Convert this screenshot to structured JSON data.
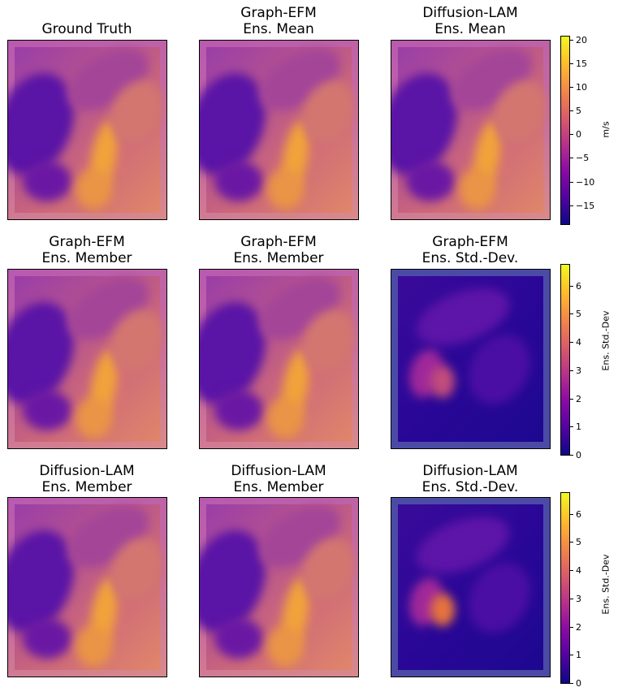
{
  "colors": {
    "plasma_dark": "#0d0887",
    "plasma_purple": "#7e03a8",
    "plasma_magenta": "#cc4778",
    "plasma_orange": "#f89540",
    "plasma_yellow": "#f0f921"
  },
  "panels": [
    {
      "title": "Ground Truth",
      "kind": "wind"
    },
    {
      "title": "Graph-EFM\nEns. Mean",
      "kind": "wind"
    },
    {
      "title": "Diffusion-LAM\nEns. Mean",
      "kind": "wind"
    },
    {
      "title": "Graph-EFM\nEns. Member",
      "kind": "wind"
    },
    {
      "title": "Graph-EFM\nEns. Member",
      "kind": "wind"
    },
    {
      "title": "Graph-EFM\nEns. Std.-Dev.",
      "kind": "std"
    },
    {
      "title": "Diffusion-LAM\nEns. Member",
      "kind": "wind"
    },
    {
      "title": "Diffusion-LAM\nEns. Member",
      "kind": "wind"
    },
    {
      "title": "Diffusion-LAM\nEns. Std.-Dev.",
      "kind": "std"
    }
  ],
  "colorbars": [
    {
      "label": "m/s",
      "ticks": [
        "20",
        "15",
        "10",
        "5",
        "0",
        "−5",
        "−10",
        "−15"
      ],
      "vmin": -19,
      "vmax": 21
    },
    {
      "label": "Ens. Std.-Dev",
      "ticks": [
        "6",
        "5",
        "4",
        "3",
        "2",
        "1",
        "0"
      ],
      "vmin": 0,
      "vmax": 6.8
    },
    {
      "label": "Ens. Std.-Dev",
      "ticks": [
        "6",
        "5",
        "4",
        "3",
        "2",
        "1",
        "0"
      ],
      "vmin": 0,
      "vmax": 6.8
    }
  ],
  "chart_data": [
    {
      "type": "heatmap",
      "title": "Ground Truth",
      "colormap": "plasma",
      "units": "m/s",
      "zlim": [
        -19,
        21
      ]
    },
    {
      "type": "heatmap",
      "title": "Graph-EFM\nEns. Mean",
      "colormap": "plasma",
      "units": "m/s",
      "zlim": [
        -19,
        21
      ]
    },
    {
      "type": "heatmap",
      "title": "Diffusion-LAM\nEns. Mean",
      "colormap": "plasma",
      "units": "m/s",
      "zlim": [
        -19,
        21
      ]
    },
    {
      "type": "heatmap",
      "title": "Graph-EFM\nEns. Member",
      "colormap": "plasma",
      "units": "m/s",
      "zlim": [
        -19,
        21
      ]
    },
    {
      "type": "heatmap",
      "title": "Graph-EFM\nEns. Member",
      "colormap": "plasma",
      "units": "m/s",
      "zlim": [
        -19,
        21
      ]
    },
    {
      "type": "heatmap",
      "title": "Graph-EFM\nEns. Std.-Dev.",
      "colormap": "plasma",
      "units": "Ens. Std.-Dev",
      "zlim": [
        0,
        6.8
      ]
    },
    {
      "type": "heatmap",
      "title": "Diffusion-LAM\nEns. Member",
      "colormap": "plasma",
      "units": "m/s",
      "zlim": [
        -19,
        21
      ]
    },
    {
      "type": "heatmap",
      "title": "Diffusion-LAM\nEns. Member",
      "colormap": "plasma",
      "units": "m/s",
      "zlim": [
        -19,
        21
      ]
    },
    {
      "type": "heatmap",
      "title": "Diffusion-LAM\nEns. Std.-Dev.",
      "colormap": "plasma",
      "units": "Ens. Std.-Dev",
      "zlim": [
        0,
        6.8
      ]
    }
  ]
}
